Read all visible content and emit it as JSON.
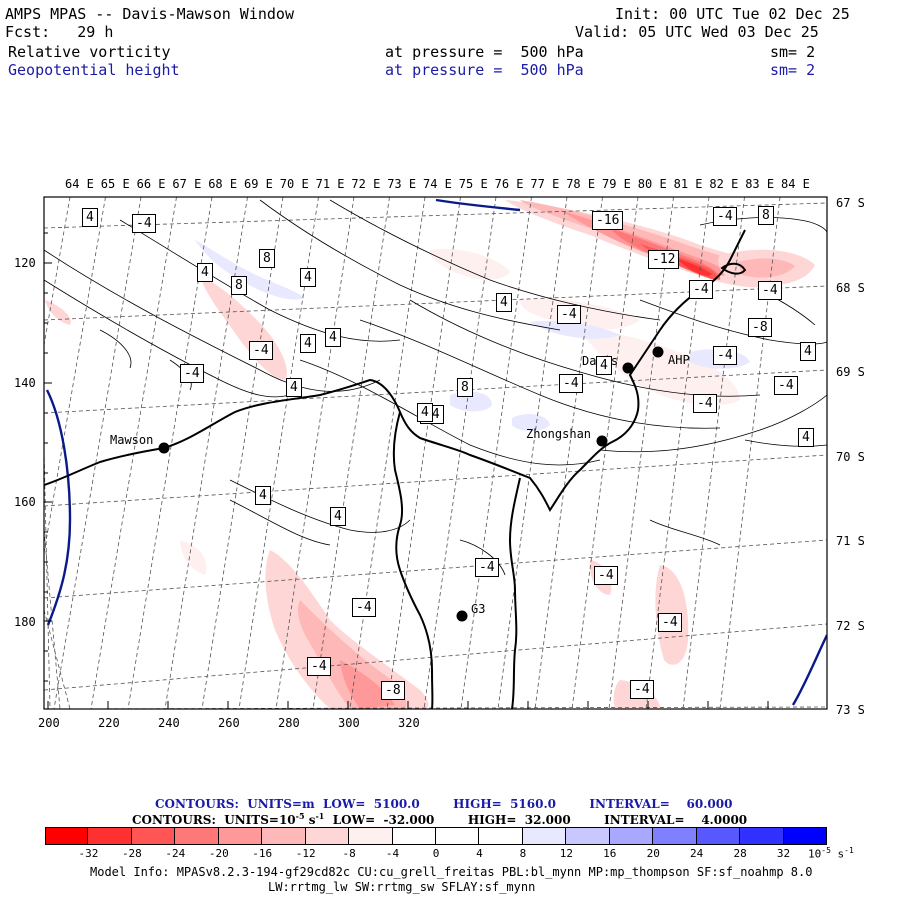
{
  "header": {
    "title": "AMPS MPAS -- Davis-Mawson Window",
    "forecast": "Fcst:   29 h",
    "init": "Init: 00 UTC Tue 02 Dec 25",
    "valid": "Valid: 05 UTC Wed 03 Dec 25",
    "field1_name": "Relative vorticity",
    "field1_level": "at pressure =  500 hPa",
    "field1_sm": "sm= 2",
    "field2_name": "Geopotential height",
    "field2_level": "at pressure =  500 hPa",
    "field2_sm": "sm= 2"
  },
  "map": {
    "top_lon_labels": [
      "64 E",
      "65 E",
      "66 E",
      "67 E",
      "68 E",
      "69 E",
      "70 E",
      "71 E",
      "72 E",
      "73 E",
      "74 E",
      "75 E",
      "76 E",
      "77 E",
      "78 E",
      "79 E",
      "80 E",
      "81 E",
      "82 E",
      "83 E",
      "84 E"
    ],
    "right_lat_labels": [
      "67 S",
      "68 S",
      "69 S",
      "70 S",
      "71 S",
      "72 S",
      "73 S"
    ],
    "left_y_labels": [
      "120",
      "140",
      "160",
      "180"
    ],
    "bottom_x_labels": [
      "200",
      "220",
      "240",
      "260",
      "280",
      "300",
      "320"
    ],
    "stations": [
      {
        "name": "Mawson"
      },
      {
        "name": "Davis"
      },
      {
        "name": "Zhongshan"
      },
      {
        "name": "G3"
      },
      {
        "name": "AHP"
      }
    ],
    "contour_labels": [
      "4",
      "-4",
      "4",
      "8",
      "8",
      "4",
      "-4",
      "4",
      "4",
      "-4",
      "4",
      "-4",
      "8",
      "4",
      "-4",
      "-4",
      "4",
      "4",
      "-4",
      "-4",
      "-4",
      "4",
      "-4",
      "-8",
      "-16",
      "-12",
      "-4",
      "-4",
      "-4",
      "-8",
      "-4",
      "4",
      "-4",
      "-4",
      "4",
      "-4",
      "-4",
      "8",
      "4"
    ]
  },
  "footer": {
    "contours_height": "CONTOURS:  UNITS=m  LOW=  5100.0        HIGH=  5160.0        INTERVAL=    60.000",
    "contours_vort_prefix": "CONTOURS:  UNITS=10",
    "contours_vort_exp": "-5",
    "contours_vort_suffix": " s",
    "contours_vort_exp2": "-1",
    "contours_vort_rest": "  LOW=  -32.000        HIGH=  32.000        INTERVAL=    4.0000",
    "model_info_1": "Model Info: MPASv8.2.3-194-gf29cd82c CU:cu_grell_freitas PBL:bl_mynn MP:mp_thompson SF:sf_noahmp 8.0",
    "model_info_2": "LW:rrtmg_lw SW:rrtmg_sw SFLAY:sf_mynn",
    "units": "10",
    "units_exp": "-5",
    "units_s": " s",
    "units_s_exp": "-1"
  },
  "colorbar": {
    "tick_labels": [
      "-32",
      "-28",
      "-24",
      "-20",
      "-16",
      "-12",
      "-8",
      "-4",
      "0",
      "4",
      "8",
      "12",
      "16",
      "20",
      "24",
      "28",
      "32"
    ],
    "colors": [
      "#ff0000",
      "#ff3030",
      "#ff5555",
      "#ff7878",
      "#ff9999",
      "#ffb8b8",
      "#ffd6d6",
      "#fff0f0",
      "#ffffff",
      "#ffffff",
      "#e8e8ff",
      "#c8c8ff",
      "#a8a8ff",
      "#8080ff",
      "#5858ff",
      "#3030ff",
      "#0000ff"
    ]
  }
}
